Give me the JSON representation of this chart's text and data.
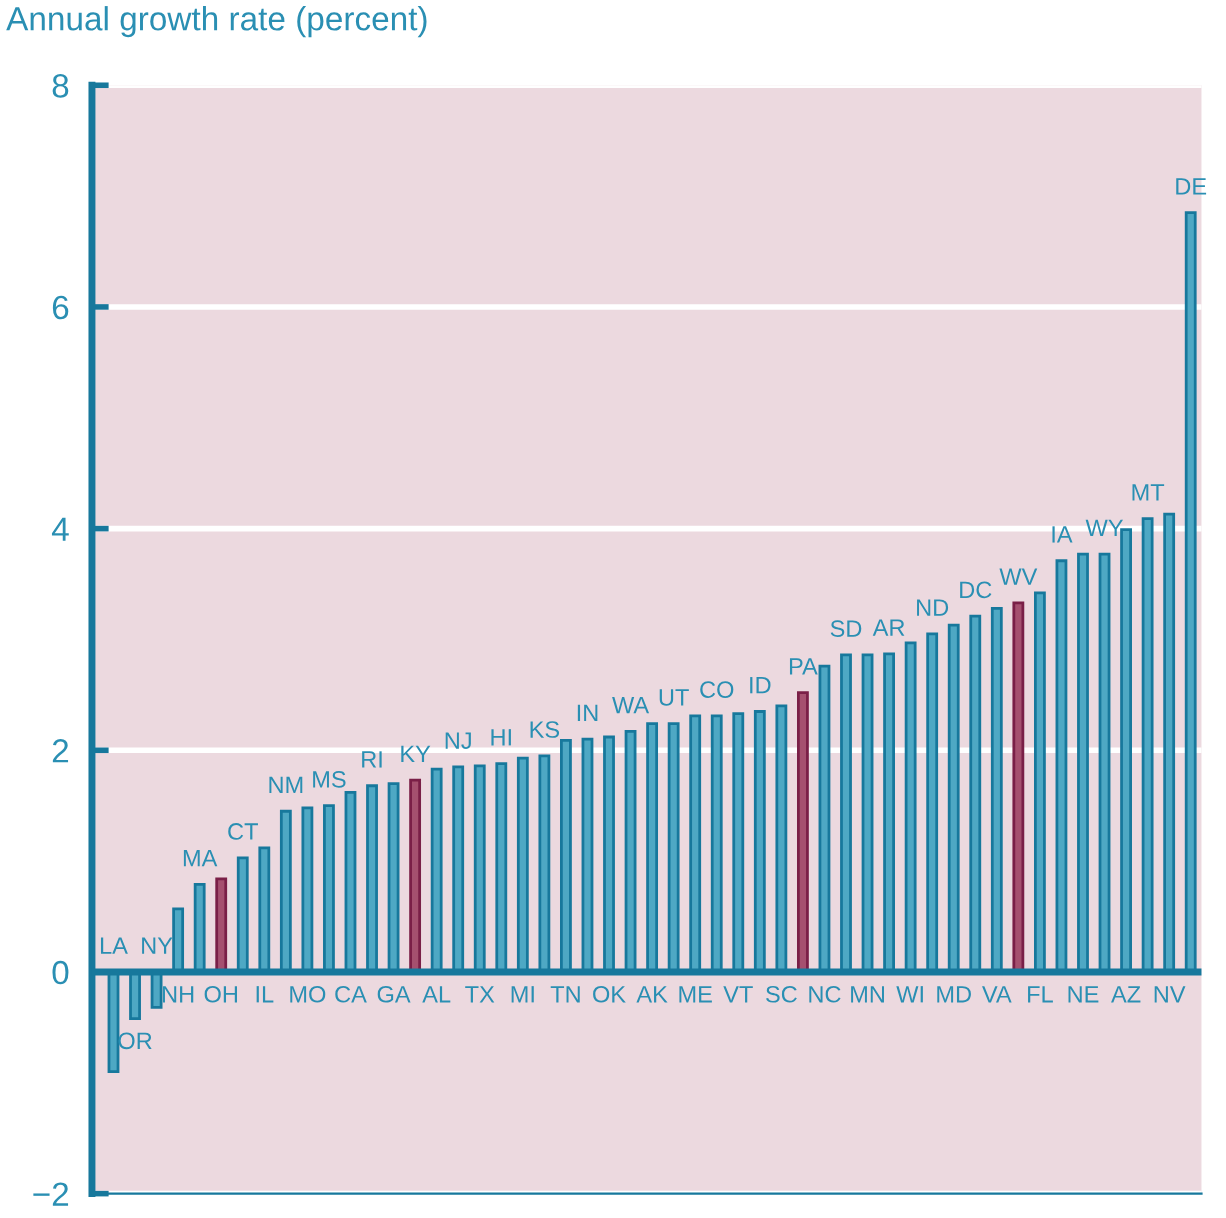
{
  "chart_data": {
    "type": "bar",
    "ylabel": "Annual growth rate (percent)",
    "categories": [
      "LA",
      "OR",
      "NY",
      "NH",
      "MA",
      "OH",
      "CT",
      "IL",
      "NM",
      "MO",
      "MS",
      "CA",
      "RI",
      "GA",
      "KY",
      "AL",
      "NJ",
      "TX",
      "HI",
      "MI",
      "KS",
      "TN",
      "IN",
      "OK",
      "WA",
      "AK",
      "UT",
      "ME",
      "CO",
      "VT",
      "ID",
      "SC",
      "PA",
      "NC",
      "SD",
      "MN",
      "AR",
      "WI",
      "ND",
      "MD",
      "DC",
      "VA",
      "WV",
      "FL",
      "IA",
      "NE",
      "WY",
      "AZ",
      "MT",
      "NV",
      "DE"
    ],
    "values": [
      -0.9,
      -0.42,
      -0.32,
      0.57,
      0.79,
      0.84,
      1.03,
      1.12,
      1.45,
      1.48,
      1.5,
      1.62,
      1.68,
      1.7,
      1.73,
      1.83,
      1.85,
      1.86,
      1.88,
      1.93,
      1.95,
      2.09,
      2.1,
      2.12,
      2.17,
      2.24,
      2.24,
      2.31,
      2.31,
      2.33,
      2.35,
      2.4,
      2.52,
      2.76,
      2.86,
      2.86,
      2.87,
      2.97,
      3.05,
      3.13,
      3.21,
      3.28,
      3.33,
      3.42,
      3.71,
      3.77,
      3.77,
      3.99,
      4.09,
      4.13,
      6.85
    ],
    "colors": [
      "#4ea8c4",
      "#4ea8c4",
      "#4ea8c4",
      "#4ea8c4",
      "#4ea8c4",
      "#a5506f",
      "#4ea8c4",
      "#4ea8c4",
      "#4ea8c4",
      "#4ea8c4",
      "#4ea8c4",
      "#4ea8c4",
      "#4ea8c4",
      "#4ea8c4",
      "#a5506f",
      "#4ea8c4",
      "#4ea8c4",
      "#4ea8c4",
      "#4ea8c4",
      "#4ea8c4",
      "#4ea8c4",
      "#4ea8c4",
      "#4ea8c4",
      "#4ea8c4",
      "#4ea8c4",
      "#4ea8c4",
      "#4ea8c4",
      "#4ea8c4",
      "#4ea8c4",
      "#4ea8c4",
      "#4ea8c4",
      "#4ea8c4",
      "#a5506f",
      "#4ea8c4",
      "#4ea8c4",
      "#4ea8c4",
      "#4ea8c4",
      "#4ea8c4",
      "#4ea8c4",
      "#4ea8c4",
      "#4ea8c4",
      "#4ea8c4",
      "#a5506f",
      "#4ea8c4",
      "#4ea8c4",
      "#4ea8c4",
      "#4ea8c4",
      "#4ea8c4",
      "#4ea8c4",
      "#4ea8c4",
      "#4ea8c4"
    ],
    "ylim": [
      -2,
      8
    ],
    "yticks": [
      -2,
      0,
      2,
      4,
      6,
      8
    ],
    "grid": "y"
  }
}
